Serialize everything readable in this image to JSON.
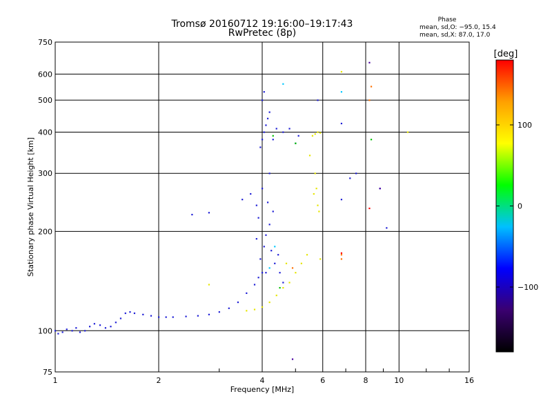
{
  "chart_data": {
    "type": "scatter",
    "title": "Tromsø 20160712 19:16:00–19:17:43",
    "subtitle": "RwPretec (8p)",
    "xlabel": "Frequency [MHz]",
    "ylabel": "Stationary phase Virtual Height [km]",
    "x_scale": "log",
    "y_scale": "log",
    "xlim": [
      1,
      16
    ],
    "ylim": [
      75,
      750
    ],
    "x_ticks": [
      1,
      2,
      4,
      6,
      8,
      10,
      16
    ],
    "y_ticks": [
      75,
      100,
      200,
      300,
      400,
      500,
      600,
      750
    ],
    "x_ticklabels": [
      "1",
      "2",
      "4",
      "6",
      "8",
      "10",
      "16"
    ],
    "y_ticklabels": [
      "75",
      "100",
      "200",
      "300",
      "400",
      "500",
      "600",
      "750"
    ],
    "grid": true,
    "phase_box": {
      "heading": "Phase",
      "line1": "mean, sd,O: −95.0, 15.4",
      "line2": "mean, sd,X:  87.0, 17.0"
    },
    "colorbar": {
      "label": "[deg]",
      "range": [
        -180,
        180
      ],
      "ticks": [
        -100,
        0,
        100
      ],
      "ticklabels": [
        "−100",
        "0",
        "100"
      ],
      "colors": [
        "#000000",
        "#3a0070",
        "#0000ff",
        "#00c0ff",
        "#00ff00",
        "#ffff00",
        "#ffa000",
        "#ff0000"
      ]
    },
    "series": [
      {
        "color": "#1f1fd6",
        "points": [
          [
            1.0,
            100
          ],
          [
            1.02,
            98
          ],
          [
            1.05,
            99
          ],
          [
            1.08,
            101
          ],
          [
            1.12,
            100
          ],
          [
            1.15,
            102
          ],
          [
            1.18,
            99
          ],
          [
            1.22,
            100
          ],
          [
            1.26,
            103
          ],
          [
            1.3,
            105
          ],
          [
            1.35,
            104
          ],
          [
            1.4,
            102
          ],
          [
            1.45,
            103
          ],
          [
            1.5,
            106
          ],
          [
            1.55,
            109
          ],
          [
            1.6,
            113
          ],
          [
            1.65,
            114
          ],
          [
            1.7,
            113
          ],
          [
            1.8,
            112
          ],
          [
            1.9,
            111
          ],
          [
            2.0,
            110
          ],
          [
            2.1,
            110
          ],
          [
            2.2,
            110
          ],
          [
            2.4,
            110.5
          ],
          [
            2.6,
            111
          ],
          [
            2.8,
            112
          ],
          [
            3.0,
            114
          ],
          [
            3.2,
            117
          ],
          [
            3.4,
            122
          ],
          [
            3.6,
            130
          ],
          [
            3.8,
            138
          ],
          [
            3.9,
            145
          ],
          [
            4.0,
            150
          ],
          [
            3.95,
            165
          ],
          [
            4.05,
            180
          ],
          [
            4.1,
            195
          ],
          [
            4.2,
            210
          ],
          [
            3.9,
            220
          ],
          [
            4.3,
            230
          ],
          [
            4.15,
            245
          ],
          [
            3.5,
            250
          ],
          [
            3.7,
            260
          ],
          [
            3.85,
            240
          ],
          [
            2.5,
            225
          ],
          [
            2.8,
            228
          ],
          [
            4.0,
            380
          ],
          [
            4.05,
            400
          ],
          [
            4.1,
            420
          ],
          [
            4.15,
            440
          ],
          [
            4.2,
            460
          ],
          [
            4.0,
            500
          ],
          [
            4.05,
            530
          ],
          [
            4.4,
            410
          ],
          [
            4.6,
            400
          ],
          [
            4.8,
            410
          ],
          [
            4.3,
            380
          ],
          [
            3.95,
            360
          ],
          [
            4.25,
            175
          ],
          [
            4.35,
            160
          ],
          [
            4.1,
            150
          ],
          [
            4.45,
            170
          ],
          [
            3.85,
            190
          ],
          [
            4.0,
            270
          ],
          [
            4.2,
            300
          ],
          [
            4.5,
            150
          ],
          [
            4.6,
            140
          ],
          [
            5.0,
            370
          ],
          [
            5.1,
            390
          ],
          [
            7.2,
            290
          ],
          [
            7.5,
            300
          ],
          [
            8.8,
            270
          ],
          [
            9.2,
            205
          ],
          [
            5.8,
            500
          ],
          [
            6.8,
            425
          ],
          [
            6.8,
            250
          ]
        ]
      },
      {
        "color": "#e6e600",
        "points": [
          [
            3.6,
            115
          ],
          [
            3.8,
            116
          ],
          [
            4.0,
            118
          ],
          [
            4.2,
            122
          ],
          [
            4.4,
            128
          ],
          [
            4.6,
            135
          ],
          [
            4.8,
            140
          ],
          [
            5.0,
            150
          ],
          [
            5.2,
            160
          ],
          [
            5.4,
            170
          ],
          [
            5.6,
            390
          ],
          [
            5.7,
            395
          ],
          [
            5.8,
            400
          ],
          [
            5.9,
            398
          ],
          [
            5.65,
            260
          ],
          [
            5.75,
            270
          ],
          [
            5.8,
            240
          ],
          [
            5.85,
            230
          ],
          [
            5.7,
            300
          ],
          [
            5.5,
            340
          ],
          [
            5.9,
            165
          ],
          [
            4.7,
            160
          ],
          [
            6.8,
            610
          ],
          [
            10.6,
            400
          ],
          [
            2.8,
            138
          ]
        ]
      },
      {
        "color": "#00c000",
        "points": [
          [
            4.3,
            390
          ],
          [
            4.5,
            135
          ],
          [
            8.3,
            380
          ],
          [
            5.0,
            370
          ]
        ]
      },
      {
        "color": "#00c8ff",
        "points": [
          [
            4.6,
            560
          ],
          [
            6.8,
            530
          ],
          [
            4.2,
            155
          ],
          [
            4.35,
            180
          ]
        ]
      },
      {
        "color": "#ff7000",
        "points": [
          [
            8.3,
            550
          ],
          [
            6.8,
            165
          ],
          [
            6.8,
            170
          ],
          [
            8.2,
            500
          ],
          [
            4.9,
            155
          ]
        ]
      },
      {
        "color": "#ff0000",
        "points": [
          [
            8.2,
            235
          ],
          [
            6.8,
            172
          ]
        ]
      },
      {
        "color": "#4a00a0",
        "points": [
          [
            8.2,
            650
          ],
          [
            4.9,
            82
          ],
          [
            8.8,
            270
          ]
        ]
      }
    ]
  }
}
